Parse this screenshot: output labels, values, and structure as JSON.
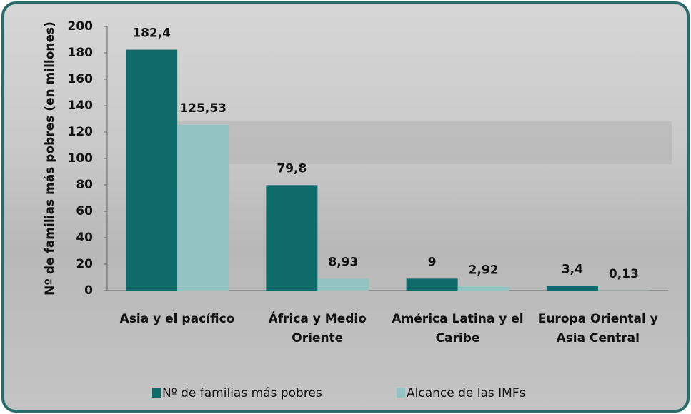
{
  "chart_data": {
    "type": "bar",
    "categories": [
      "Asia y el pacífico",
      "África y Medio Oriente",
      "América Latina y el Caribe",
      "Europa Oriental y Asia Central"
    ],
    "series": [
      {
        "name": "Nº de familias más pobres",
        "color": "#0f6a6a",
        "values": [
          182.4,
          79.8,
          9,
          3.4
        ],
        "value_labels": [
          "182,4",
          "79,8",
          "9",
          "3,4"
        ]
      },
      {
        "name": "Alcance de las IMFs",
        "color": "#93c4c3",
        "values": [
          125.53,
          8.93,
          2.92,
          0.13
        ],
        "value_labels": [
          "125,53",
          "8,93",
          "2,92",
          "0,13"
        ]
      }
    ],
    "ylabel": "Nº de familias más pobres (en millones)",
    "ylim": [
      0,
      200
    ],
    "yticks": [
      0,
      20,
      40,
      60,
      80,
      100,
      120,
      140,
      160,
      180,
      200
    ],
    "grid": false,
    "legend": "bottom"
  }
}
